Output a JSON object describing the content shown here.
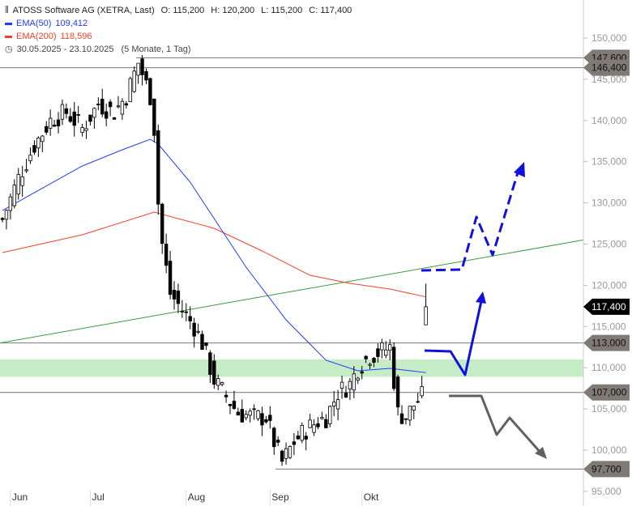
{
  "header": {
    "title": "ATOSS Software AG (XETRA, Last)",
    "open": "O: 115,200",
    "high": "H: 120,200",
    "low": "L: 115,200",
    "close": "C: 117,400",
    "ema50_label": "EMA(50)",
    "ema50_value": "109,412",
    "ema200_label": "EMA(200)",
    "ema200_value": "118,596",
    "range": "30.05.2025 - 23.10.2025",
    "range_info": "(5 Monate, 1 Tag)"
  },
  "colors": {
    "ema50": "#1f3cff",
    "ema200": "#f0402a",
    "trend": "#3a9a3a",
    "zone": "#c6ecc6",
    "arrow_up": "#1010e0",
    "arrow_down": "#606060",
    "tag": "#7f7a75"
  },
  "chart_data": {
    "type": "candlestick",
    "ylim": [
      95000,
      152000
    ],
    "y_ticks": [
      "95,000",
      "100,000",
      "105,000",
      "110,000",
      "115,000",
      "120,000",
      "125,000",
      "130,000",
      "135,000",
      "140,000",
      "145,000",
      "150,000"
    ],
    "y_tick_values": [
      95000,
      100000,
      105000,
      110000,
      115000,
      120000,
      125000,
      130000,
      135000,
      140000,
      145000,
      150000
    ],
    "x_ticks": [
      {
        "label": "Jun",
        "day": 2
      },
      {
        "label": "Jul",
        "day": 22
      },
      {
        "label": "Aug",
        "day": 46
      },
      {
        "label": "Sep",
        "day": 67
      },
      {
        "label": "Okt",
        "day": 90
      }
    ],
    "close_waypoints": [
      [
        0,
        128000
      ],
      [
        4,
        133000
      ],
      [
        8,
        137000
      ],
      [
        12,
        140000
      ],
      [
        16,
        141000
      ],
      [
        20,
        139000
      ],
      [
        24,
        142000
      ],
      [
        28,
        141000
      ],
      [
        31,
        143000
      ],
      [
        34,
        147000
      ],
      [
        37,
        143000
      ],
      [
        38,
        139000
      ],
      [
        39,
        130000
      ],
      [
        40,
        125000
      ],
      [
        42,
        119000
      ],
      [
        45,
        117000
      ],
      [
        48,
        115000
      ],
      [
        50,
        113000
      ],
      [
        53,
        108500
      ],
      [
        56,
        106500
      ],
      [
        59,
        104500
      ],
      [
        63,
        104000
      ],
      [
        66,
        104000
      ],
      [
        68,
        101000
      ],
      [
        70,
        98500
      ],
      [
        73,
        101000
      ],
      [
        76,
        102500
      ],
      [
        79,
        103500
      ],
      [
        81,
        104000
      ],
      [
        84,
        107000
      ],
      [
        87,
        108000
      ],
      [
        89,
        110000
      ],
      [
        92,
        111500
      ],
      [
        95,
        112000
      ],
      [
        97,
        112500
      ],
      [
        99,
        104500
      ],
      [
        101,
        104000
      ],
      [
        103,
        105500
      ],
      [
        105,
        106500
      ],
      [
        106,
        117400
      ]
    ],
    "ema50": [
      [
        0,
        129077
      ],
      [
        8,
        131238
      ],
      [
        20,
        134480
      ],
      [
        30,
        136444
      ],
      [
        37,
        137721
      ],
      [
        39,
        137132
      ],
      [
        47,
        132515
      ],
      [
        53,
        128095
      ],
      [
        61,
        122200
      ],
      [
        71,
        115815
      ],
      [
        81,
        110904
      ],
      [
        89,
        109627
      ],
      [
        97,
        109921
      ],
      [
        106,
        109412
      ]
    ],
    "ema200": [
      [
        0,
        123969
      ],
      [
        20,
        126130
      ],
      [
        38,
        128880
      ],
      [
        53,
        126916
      ],
      [
        65,
        124166
      ],
      [
        77,
        121219
      ],
      [
        87,
        120237
      ],
      [
        97,
        119549
      ],
      [
        106,
        118596
      ]
    ],
    "trendline": [
      [
        0,
        113000
      ],
      [
        146,
        125500
      ]
    ],
    "support_zone": [
      108900,
      111000
    ],
    "levels": [
      {
        "value": 147600,
        "label": "147,600"
      },
      {
        "value": 146400,
        "label": "146,400"
      },
      {
        "value": 113000,
        "label": "113,000"
      },
      {
        "value": 107000,
        "label": "107,000"
      },
      {
        "value": 97700,
        "label": "97,700"
      }
    ],
    "last_price": {
      "value": 117400,
      "label": "117,400"
    }
  }
}
